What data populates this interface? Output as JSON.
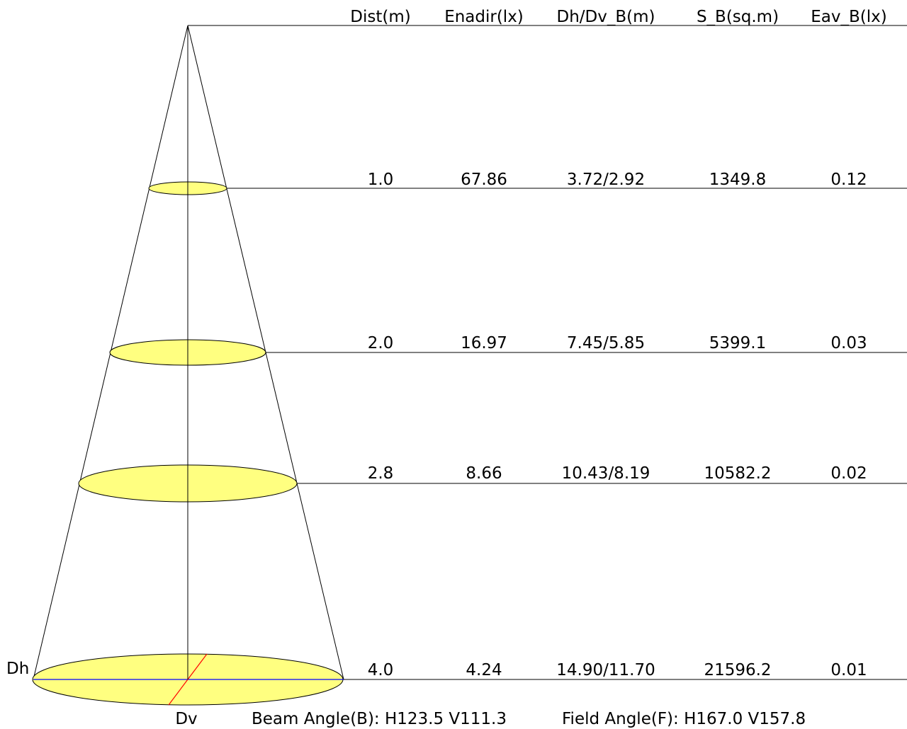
{
  "headers": {
    "dist": "Dist(m)",
    "enadir": "Enadir(lx)",
    "dhdv": "Dh/Dv_B(m)",
    "sb": "S_B(sq.m)",
    "eav": "Eav_B(lx)"
  },
  "rows": [
    {
      "dist": "1.0",
      "enadir": "67.86",
      "dhdv": "3.72/2.92",
      "sb": "1349.8",
      "eav": "0.12"
    },
    {
      "dist": "2.0",
      "enadir": "16.97",
      "dhdv": "7.45/5.85",
      "sb": "5399.1",
      "eav": "0.03"
    },
    {
      "dist": "2.8",
      "enadir": "8.66",
      "dhdv": "10.43/8.19",
      "sb": "10582.2",
      "eav": "0.02"
    },
    {
      "dist": "4.0",
      "enadir": "4.24",
      "dhdv": "14.90/11.70",
      "sb": "21596.2",
      "eav": "0.01"
    }
  ],
  "labels": {
    "dh": "Dh",
    "dv": "Dv"
  },
  "footer": {
    "beam_angle": "Beam Angle(B): H123.5 V111.3",
    "field_angle": "Field Angle(F): H167.0 V157.8"
  },
  "colors": {
    "ellipse_fill": "#ffff80",
    "stroke": "#000000",
    "dh_axis": "#0000ff",
    "dv_axis": "#ff0000"
  }
}
